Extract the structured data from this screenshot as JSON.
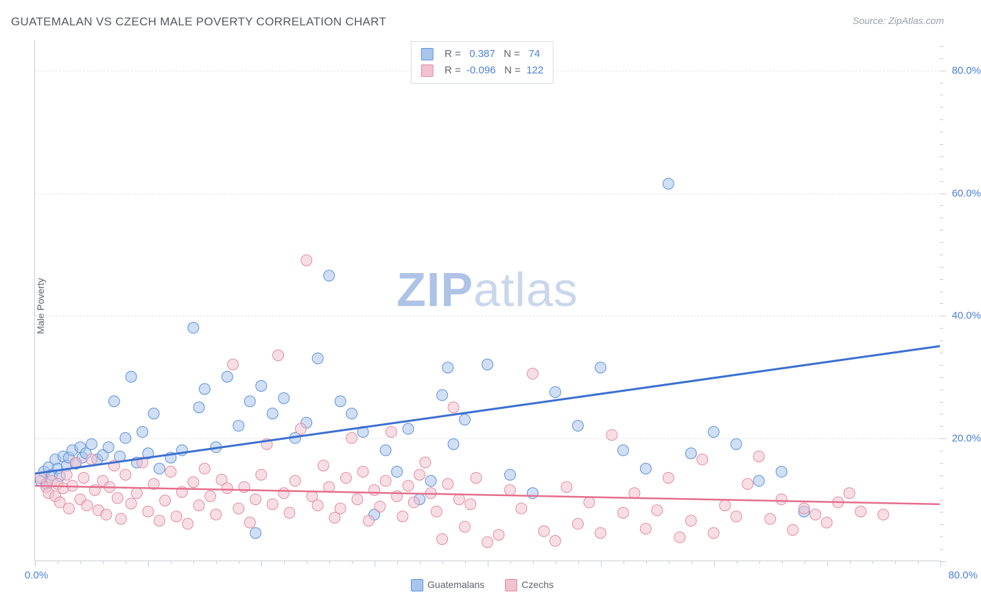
{
  "title": "GUATEMALAN VS CZECH MALE POVERTY CORRELATION CHART",
  "source_label": "Source: ZipAtlas.com",
  "ylabel": "Male Poverty",
  "watermark_bold": "ZIP",
  "watermark_rest": "atlas",
  "chart": {
    "type": "scatter",
    "xlim": [
      0,
      80
    ],
    "ylim": [
      0,
      85
    ],
    "background_color": "#ffffff",
    "grid_color": "#e3e5e8",
    "axis_color": "#c8ccd0",
    "tick_label_color": "#4a7fd6",
    "label_color": "#5f6368",
    "title_color": "#555a60",
    "title_fontsize": 17,
    "label_fontsize": 14,
    "tick_fontsize": 15,
    "marker_radius": 8,
    "marker_opacity": 0.55,
    "x_ticks_major": [
      0,
      10,
      20,
      30,
      40,
      50,
      60,
      70,
      80
    ],
    "x_ticks_minor_step": 2,
    "y_gridlines": [
      20,
      40,
      60,
      80
    ],
    "y_tick_labels": {
      "20": "20.0%",
      "40": "40.0%",
      "60": "60.0%",
      "80": "80.0%"
    },
    "x_min_label": "0.0%",
    "x_max_label": "80.0%",
    "series": [
      {
        "name": "Guatemalans",
        "fill": "#a9c5ed",
        "stroke": "#5a8fd8",
        "swatch_fill": "#a9c5ed",
        "swatch_stroke": "#5a8fd8",
        "trend_color": "#3b6fd1",
        "trend_width": 3,
        "R": 0.387,
        "N": 74,
        "trend": {
          "x1": 0,
          "y1": 14.2,
          "x2": 80,
          "y2": 35.0
        },
        "points": [
          [
            0.5,
            13
          ],
          [
            0.8,
            14.5
          ],
          [
            1,
            12.5
          ],
          [
            1.2,
            15.2
          ],
          [
            1.5,
            14
          ],
          [
            1.8,
            16.5
          ],
          [
            2,
            15
          ],
          [
            2.2,
            13.8
          ],
          [
            2.5,
            17
          ],
          [
            2.8,
            15.5
          ],
          [
            3,
            16.8
          ],
          [
            3.3,
            18
          ],
          [
            3.6,
            15.8
          ],
          [
            4,
            18.5
          ],
          [
            4.2,
            16.8
          ],
          [
            4.5,
            17.5
          ],
          [
            5,
            19
          ],
          [
            5.5,
            16.5
          ],
          [
            6,
            17.2
          ],
          [
            6.5,
            18.5
          ],
          [
            7,
            26
          ],
          [
            7.5,
            17
          ],
          [
            8,
            20
          ],
          [
            8.5,
            30
          ],
          [
            9,
            16
          ],
          [
            9.5,
            21
          ],
          [
            10,
            17.5
          ],
          [
            10.5,
            24
          ],
          [
            11,
            15
          ],
          [
            12,
            16.8
          ],
          [
            13,
            18
          ],
          [
            14,
            38
          ],
          [
            14.5,
            25
          ],
          [
            15,
            28
          ],
          [
            16,
            18.5
          ],
          [
            17,
            30
          ],
          [
            18,
            22
          ],
          [
            19,
            26
          ],
          [
            19.5,
            4.5
          ],
          [
            20,
            28.5
          ],
          [
            21,
            24
          ],
          [
            22,
            26.5
          ],
          [
            23,
            20
          ],
          [
            24,
            22.5
          ],
          [
            25,
            33
          ],
          [
            26,
            46.5
          ],
          [
            27,
            26
          ],
          [
            28,
            24
          ],
          [
            29,
            21
          ],
          [
            30,
            7.5
          ],
          [
            31,
            18
          ],
          [
            32,
            14.5
          ],
          [
            33,
            21.5
          ],
          [
            34,
            10
          ],
          [
            35,
            13
          ],
          [
            36,
            27
          ],
          [
            36.5,
            31.5
          ],
          [
            37,
            19
          ],
          [
            38,
            23
          ],
          [
            40,
            32
          ],
          [
            42,
            14
          ],
          [
            44,
            11
          ],
          [
            46,
            27.5
          ],
          [
            48,
            22
          ],
          [
            50,
            31.5
          ],
          [
            52,
            18
          ],
          [
            54,
            15
          ],
          [
            56,
            61.5
          ],
          [
            58,
            17.5
          ],
          [
            60,
            21
          ],
          [
            62,
            19
          ],
          [
            64,
            13
          ],
          [
            66,
            14.5
          ],
          [
            68,
            8
          ]
        ]
      },
      {
        "name": "Czechs",
        "fill": "#f1c2cf",
        "stroke": "#e38aa1",
        "swatch_fill": "#f1c2cf",
        "swatch_stroke": "#e38aa1",
        "trend_color": "#e56d8c",
        "trend_width": 2.5,
        "R": -0.096,
        "N": 122,
        "trend": {
          "x1": 0,
          "y1": 12.2,
          "x2": 80,
          "y2": 9.2
        },
        "points": [
          [
            0.5,
            13.5
          ],
          [
            1,
            12
          ],
          [
            1.2,
            11
          ],
          [
            1.5,
            13
          ],
          [
            1.8,
            10.5
          ],
          [
            2,
            12.5
          ],
          [
            2.2,
            9.5
          ],
          [
            2.5,
            11.8
          ],
          [
            2.8,
            14
          ],
          [
            3,
            8.5
          ],
          [
            3.3,
            12.2
          ],
          [
            3.6,
            16
          ],
          [
            4,
            10
          ],
          [
            4.3,
            13.5
          ],
          [
            4.6,
            9
          ],
          [
            5,
            16.5
          ],
          [
            5.3,
            11.5
          ],
          [
            5.6,
            8.2
          ],
          [
            6,
            13
          ],
          [
            6.3,
            7.5
          ],
          [
            6.6,
            12
          ],
          [
            7,
            15.5
          ],
          [
            7.3,
            10.2
          ],
          [
            7.6,
            6.8
          ],
          [
            8,
            14
          ],
          [
            8.5,
            9.3
          ],
          [
            9,
            11
          ],
          [
            9.5,
            16
          ],
          [
            10,
            8
          ],
          [
            10.5,
            12.5
          ],
          [
            11,
            6.5
          ],
          [
            11.5,
            9.8
          ],
          [
            12,
            14.5
          ],
          [
            12.5,
            7.2
          ],
          [
            13,
            11.2
          ],
          [
            13.5,
            6
          ],
          [
            14,
            12.8
          ],
          [
            14.5,
            9
          ],
          [
            15,
            15
          ],
          [
            15.5,
            10.5
          ],
          [
            16,
            7.5
          ],
          [
            16.5,
            13.2
          ],
          [
            17,
            11.8
          ],
          [
            17.5,
            32
          ],
          [
            18,
            8.5
          ],
          [
            18.5,
            12
          ],
          [
            19,
            6.2
          ],
          [
            19.5,
            10
          ],
          [
            20,
            14
          ],
          [
            20.5,
            19
          ],
          [
            21,
            9.2
          ],
          [
            21.5,
            33.5
          ],
          [
            22,
            11
          ],
          [
            22.5,
            7.8
          ],
          [
            23,
            13
          ],
          [
            23.5,
            21.5
          ],
          [
            24,
            49
          ],
          [
            24.5,
            10.5
          ],
          [
            25,
            9
          ],
          [
            25.5,
            15.5
          ],
          [
            26,
            12
          ],
          [
            26.5,
            7
          ],
          [
            27,
            8.5
          ],
          [
            27.5,
            13.5
          ],
          [
            28,
            20
          ],
          [
            28.5,
            10
          ],
          [
            29,
            14.5
          ],
          [
            29.5,
            6.5
          ],
          [
            30,
            11.5
          ],
          [
            30.5,
            8.8
          ],
          [
            31,
            13
          ],
          [
            31.5,
            21
          ],
          [
            32,
            10.5
          ],
          [
            32.5,
            7.2
          ],
          [
            33,
            12.2
          ],
          [
            33.5,
            9.5
          ],
          [
            34,
            14
          ],
          [
            34.5,
            16
          ],
          [
            35,
            11
          ],
          [
            35.5,
            8
          ],
          [
            36,
            3.5
          ],
          [
            36.5,
            12.5
          ],
          [
            37,
            25
          ],
          [
            37.5,
            10
          ],
          [
            38,
            5.5
          ],
          [
            38.5,
            9.2
          ],
          [
            39,
            13.5
          ],
          [
            40,
            3
          ],
          [
            41,
            4.2
          ],
          [
            42,
            11.5
          ],
          [
            43,
            8.5
          ],
          [
            44,
            30.5
          ],
          [
            45,
            4.8
          ],
          [
            46,
            3.2
          ],
          [
            47,
            12
          ],
          [
            48,
            6
          ],
          [
            49,
            9.5
          ],
          [
            50,
            4.5
          ],
          [
            51,
            20.5
          ],
          [
            52,
            7.8
          ],
          [
            53,
            11
          ],
          [
            54,
            5.2
          ],
          [
            55,
            8.2
          ],
          [
            56,
            13.5
          ],
          [
            57,
            3.8
          ],
          [
            58,
            6.5
          ],
          [
            59,
            16.5
          ],
          [
            60,
            4.5
          ],
          [
            61,
            9
          ],
          [
            62,
            7.2
          ],
          [
            63,
            12.5
          ],
          [
            64,
            17
          ],
          [
            65,
            6.8
          ],
          [
            66,
            10
          ],
          [
            67,
            5
          ],
          [
            68,
            8.5
          ],
          [
            69,
            7.5
          ],
          [
            70,
            6.2
          ],
          [
            71,
            9.5
          ],
          [
            72,
            11
          ],
          [
            73,
            8
          ],
          [
            75,
            7.5
          ]
        ]
      }
    ]
  },
  "stats_labels": {
    "R": "R =",
    "N": "N ="
  },
  "bottom_legend": [
    {
      "label": "Guatemalans",
      "fill": "#a9c5ed",
      "stroke": "#5a8fd8"
    },
    {
      "label": "Czechs",
      "fill": "#f1c2cf",
      "stroke": "#e38aa1"
    }
  ]
}
